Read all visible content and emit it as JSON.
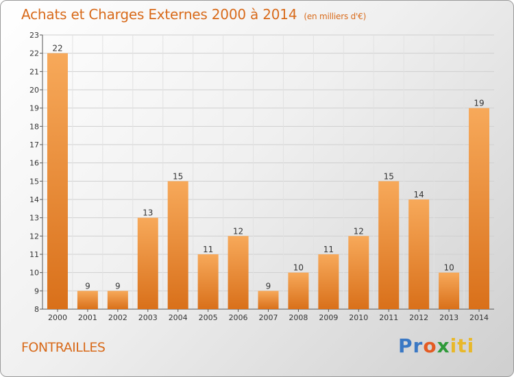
{
  "title": "Achats et Charges Externes 2000 à 2014",
  "unit": "(en milliers d'€)",
  "city": "FONTRAILLES",
  "logo": {
    "p1": "Pr",
    "p2": "o",
    "p3": "x",
    "p4": "iti"
  },
  "colors": {
    "bar_light": "#f7a95a",
    "bar_dark": "#d9701a",
    "title": "#d86a1a"
  },
  "chart_data": {
    "type": "bar",
    "title": "Achats et Charges Externes 2000 à 2014",
    "categories": [
      "2000",
      "2001",
      "2002",
      "2003",
      "2004",
      "2005",
      "2006",
      "2007",
      "2008",
      "2009",
      "2010",
      "2011",
      "2012",
      "2013",
      "2014"
    ],
    "values": [
      22,
      9,
      9,
      13,
      15,
      11,
      12,
      9,
      10,
      11,
      12,
      15,
      14,
      10,
      19
    ],
    "data_labels": [
      "22",
      "9",
      "9",
      "13",
      "15",
      "11",
      "12",
      "9",
      "10",
      "11",
      "12",
      "15",
      "14",
      "10",
      "19"
    ],
    "ylim": [
      8,
      23
    ],
    "yticks": [
      "8",
      "9",
      "10",
      "11",
      "12",
      "13",
      "14",
      "15",
      "16",
      "17",
      "18",
      "19",
      "20",
      "21",
      "22",
      "23"
    ],
    "grid": true,
    "legend": "none"
  }
}
